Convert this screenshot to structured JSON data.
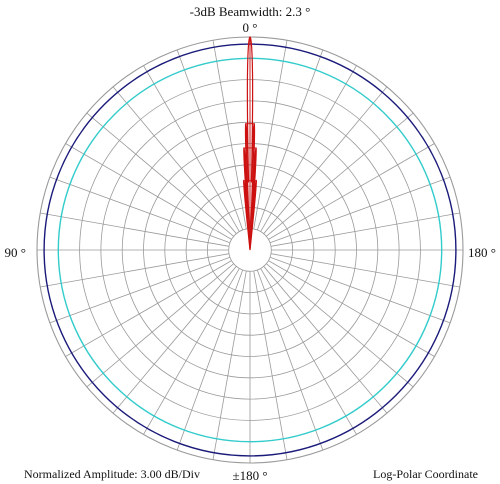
{
  "chart_data": {
    "type": "polar",
    "title": "-3dB Beamwidth: 2.3 °",
    "angle_labels": {
      "top": "0 °",
      "left": "90 °",
      "right": "180 °",
      "bottom": "±180 °"
    },
    "footer_left": "Normalized Amplitude: 3.00 dB/Div",
    "footer_right": "Log-Polar Coordinate",
    "scale": "log-polar",
    "db_per_div": 3.0,
    "radial_divisions": 10,
    "angular_step_deg": 10,
    "grid": true,
    "reference_circles": [
      {
        "level_db": -1.0,
        "color": "#1a1a7a"
      },
      {
        "level_db": -3.0,
        "color": "#33cccc"
      }
    ],
    "pattern": {
      "color": "#cc1111",
      "lobes": [
        {
          "angle_deg": 0.0,
          "width_deg": 1.3,
          "level_db": 0.0
        },
        {
          "angle_deg": -1.9,
          "width_deg": 0.9,
          "level_db": -12.2
        },
        {
          "angle_deg": 1.9,
          "width_deg": 0.9,
          "level_db": -12.2
        },
        {
          "angle_deg": -3.4,
          "width_deg": 0.9,
          "level_db": -15.6
        },
        {
          "angle_deg": 3.4,
          "width_deg": 0.9,
          "level_db": -15.6
        },
        {
          "angle_deg": -5.2,
          "width_deg": 1.0,
          "level_db": -20.2
        },
        {
          "angle_deg": 5.2,
          "width_deg": 1.0,
          "level_db": -20.2
        }
      ],
      "floor_db": -30.0
    }
  }
}
